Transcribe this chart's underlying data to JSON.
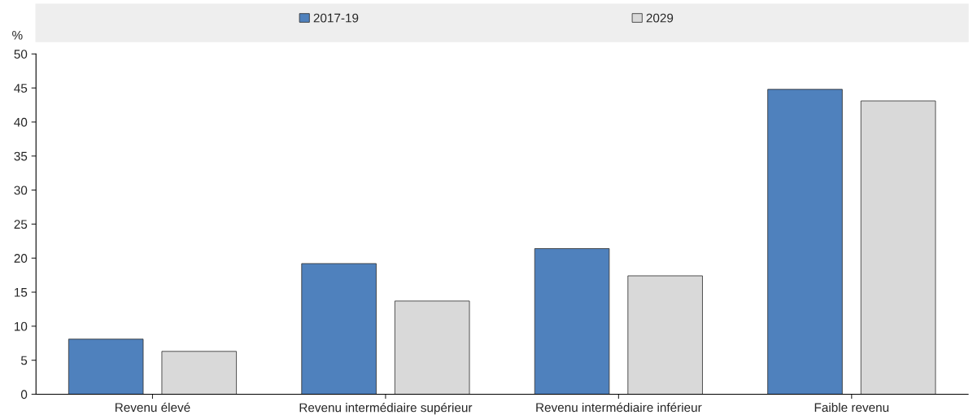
{
  "chart_data": {
    "type": "bar",
    "ylabel": "%",
    "categories": [
      "Revenu élevé",
      "Revenu intermédiaire supérieur",
      "Revenu intermédiaire inférieur",
      "Faible revenu"
    ],
    "series": [
      {
        "name": "2017-19",
        "color": "#4f81bd",
        "values": [
          8.1,
          19.2,
          21.4,
          44.8
        ]
      },
      {
        "name": "2029",
        "color": "#d9d9d9",
        "values": [
          6.3,
          13.7,
          17.4,
          43.1
        ]
      }
    ],
    "ylim": [
      0,
      50
    ],
    "yticks": [
      0,
      5,
      10,
      15,
      20,
      25,
      30,
      35,
      40,
      45,
      50
    ],
    "grid": false,
    "legend": "top"
  }
}
